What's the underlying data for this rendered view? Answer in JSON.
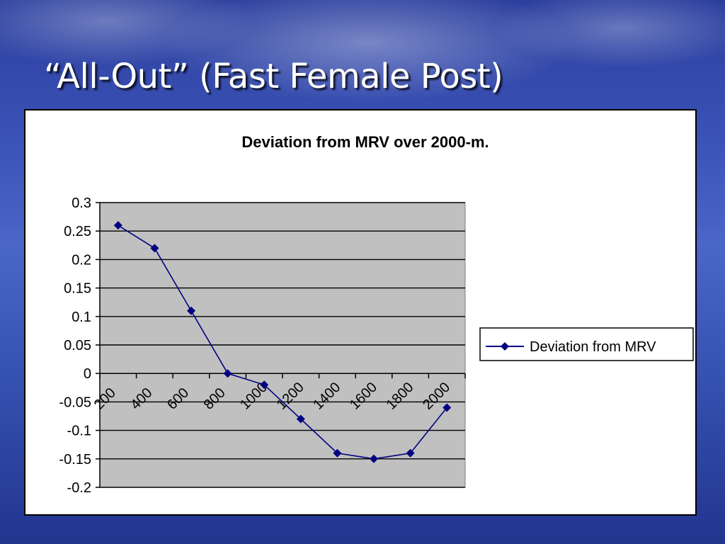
{
  "slide": {
    "title": "“All-Out” (Fast Female Post)"
  },
  "colors": {
    "series": "#000080",
    "plot_background": "#c0c0c0",
    "gridline": "#000000"
  },
  "chart_data": {
    "type": "line",
    "title": "Deviation from MRV over 2000-m.",
    "xlabel": "",
    "ylabel": "",
    "x": [
      200,
      400,
      600,
      800,
      1000,
      1200,
      1400,
      1600,
      1800,
      2000
    ],
    "ylim": [
      -0.2,
      0.3
    ],
    "yticks": [
      "0.3",
      "0.25",
      "0.2",
      "0.15",
      "0.1",
      "0.05",
      "0",
      "-0.05",
      "-0.1",
      "-0.15",
      "-0.2"
    ],
    "xticks": [
      "200",
      "400",
      "600",
      "800",
      "1000",
      "1200",
      "1400",
      "1600",
      "1800",
      "2000"
    ],
    "series": [
      {
        "name": "Deviation from MRV",
        "marker": "diamond",
        "values": [
          0.26,
          0.22,
          0.11,
          0.0,
          -0.02,
          -0.08,
          -0.14,
          -0.15,
          -0.14,
          -0.06
        ]
      }
    ],
    "grid": true,
    "legend": "right"
  }
}
